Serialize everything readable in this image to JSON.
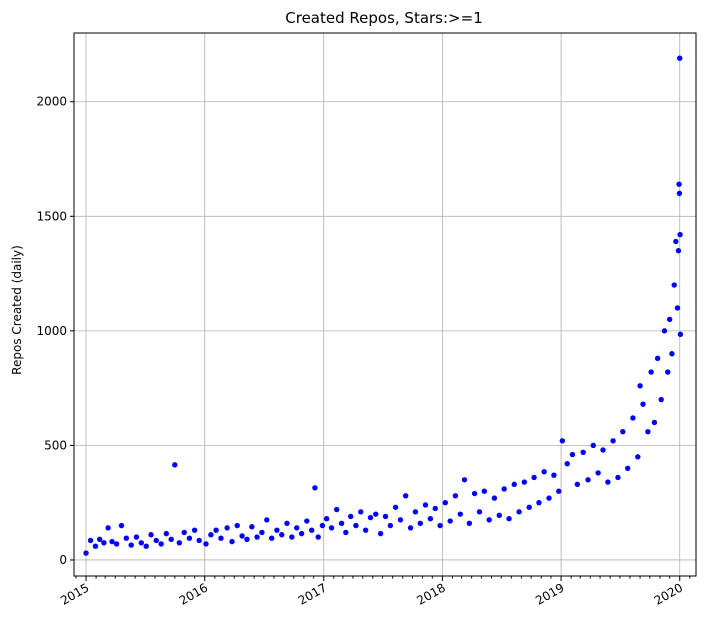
{
  "chart_data": {
    "type": "scatter",
    "title": "Created Repos, Stars:>=1",
    "xlabel": "",
    "ylabel": "Repos Created (daily)",
    "xlim": [
      "2014-11-25",
      "2020-02-20"
    ],
    "ylim": [
      -70,
      2300
    ],
    "x_ticks": [
      "2015",
      "2016",
      "2017",
      "2018",
      "2019",
      "2020"
    ],
    "x_tick_dates": [
      "2015-01-01",
      "2016-01-01",
      "2017-01-01",
      "2018-01-01",
      "2019-01-01",
      "2020-01-01"
    ],
    "y_ticks": [
      0,
      500,
      1000,
      1500,
      2000
    ],
    "grid": true,
    "marker_color": "#0000ff",
    "series": [
      {
        "points": [
          {
            "x": "2015-01-01",
            "y": 30
          },
          {
            "x": "2015-01-15",
            "y": 85
          },
          {
            "x": "2015-01-30",
            "y": 60
          },
          {
            "x": "2015-02-12",
            "y": 90
          },
          {
            "x": "2015-02-25",
            "y": 75
          },
          {
            "x": "2015-03-10",
            "y": 140
          },
          {
            "x": "2015-03-22",
            "y": 80
          },
          {
            "x": "2015-04-05",
            "y": 70
          },
          {
            "x": "2015-04-20",
            "y": 150
          },
          {
            "x": "2015-05-05",
            "y": 95
          },
          {
            "x": "2015-05-20",
            "y": 65
          },
          {
            "x": "2015-06-05",
            "y": 100
          },
          {
            "x": "2015-06-20",
            "y": 75
          },
          {
            "x": "2015-07-05",
            "y": 60
          },
          {
            "x": "2015-07-20",
            "y": 110
          },
          {
            "x": "2015-08-05",
            "y": 85
          },
          {
            "x": "2015-08-20",
            "y": 70
          },
          {
            "x": "2015-09-05",
            "y": 115
          },
          {
            "x": "2015-09-20",
            "y": 90
          },
          {
            "x": "2015-10-01",
            "y": 415
          },
          {
            "x": "2015-10-15",
            "y": 75
          },
          {
            "x": "2015-10-30",
            "y": 120
          },
          {
            "x": "2015-11-15",
            "y": 95
          },
          {
            "x": "2015-12-01",
            "y": 130
          },
          {
            "x": "2015-12-15",
            "y": 85
          },
          {
            "x": "2016-01-05",
            "y": 70
          },
          {
            "x": "2016-01-20",
            "y": 110
          },
          {
            "x": "2016-02-05",
            "y": 130
          },
          {
            "x": "2016-02-20",
            "y": 95
          },
          {
            "x": "2016-03-10",
            "y": 140
          },
          {
            "x": "2016-03-25",
            "y": 80
          },
          {
            "x": "2016-04-10",
            "y": 150
          },
          {
            "x": "2016-04-25",
            "y": 105
          },
          {
            "x": "2016-05-10",
            "y": 90
          },
          {
            "x": "2016-05-25",
            "y": 145
          },
          {
            "x": "2016-06-10",
            "y": 100
          },
          {
            "x": "2016-06-25",
            "y": 120
          },
          {
            "x": "2016-07-10",
            "y": 175
          },
          {
            "x": "2016-07-25",
            "y": 95
          },
          {
            "x": "2016-08-10",
            "y": 130
          },
          {
            "x": "2016-08-25",
            "y": 110
          },
          {
            "x": "2016-09-10",
            "y": 160
          },
          {
            "x": "2016-09-25",
            "y": 100
          },
          {
            "x": "2016-10-10",
            "y": 140
          },
          {
            "x": "2016-10-25",
            "y": 115
          },
          {
            "x": "2016-11-10",
            "y": 170
          },
          {
            "x": "2016-11-25",
            "y": 130
          },
          {
            "x": "2016-12-05",
            "y": 315
          },
          {
            "x": "2016-12-15",
            "y": 100
          },
          {
            "x": "2016-12-28",
            "y": 150
          },
          {
            "x": "2017-01-10",
            "y": 180
          },
          {
            "x": "2017-01-25",
            "y": 140
          },
          {
            "x": "2017-02-10",
            "y": 220
          },
          {
            "x": "2017-02-25",
            "y": 160
          },
          {
            "x": "2017-03-10",
            "y": 120
          },
          {
            "x": "2017-03-25",
            "y": 190
          },
          {
            "x": "2017-04-10",
            "y": 150
          },
          {
            "x": "2017-04-25",
            "y": 210
          },
          {
            "x": "2017-05-10",
            "y": 130
          },
          {
            "x": "2017-05-25",
            "y": 185
          },
          {
            "x": "2017-06-10",
            "y": 200
          },
          {
            "x": "2017-06-25",
            "y": 115
          },
          {
            "x": "2017-07-10",
            "y": 190
          },
          {
            "x": "2017-07-25",
            "y": 150
          },
          {
            "x": "2017-08-10",
            "y": 230
          },
          {
            "x": "2017-08-25",
            "y": 175
          },
          {
            "x": "2017-09-10",
            "y": 280
          },
          {
            "x": "2017-09-25",
            "y": 140
          },
          {
            "x": "2017-10-10",
            "y": 210
          },
          {
            "x": "2017-10-25",
            "y": 160
          },
          {
            "x": "2017-11-10",
            "y": 240
          },
          {
            "x": "2017-11-25",
            "y": 180
          },
          {
            "x": "2017-12-10",
            "y": 225
          },
          {
            "x": "2017-12-25",
            "y": 150
          },
          {
            "x": "2018-01-10",
            "y": 250
          },
          {
            "x": "2018-01-25",
            "y": 170
          },
          {
            "x": "2018-02-10",
            "y": 280
          },
          {
            "x": "2018-02-25",
            "y": 200
          },
          {
            "x": "2018-03-10",
            "y": 350
          },
          {
            "x": "2018-03-25",
            "y": 160
          },
          {
            "x": "2018-04-10",
            "y": 290
          },
          {
            "x": "2018-04-25",
            "y": 210
          },
          {
            "x": "2018-05-10",
            "y": 300
          },
          {
            "x": "2018-05-25",
            "y": 175
          },
          {
            "x": "2018-06-10",
            "y": 270
          },
          {
            "x": "2018-06-25",
            "y": 195
          },
          {
            "x": "2018-07-10",
            "y": 310
          },
          {
            "x": "2018-07-25",
            "y": 180
          },
          {
            "x": "2018-08-10",
            "y": 330
          },
          {
            "x": "2018-08-25",
            "y": 210
          },
          {
            "x": "2018-09-10",
            "y": 340
          },
          {
            "x": "2018-09-25",
            "y": 230
          },
          {
            "x": "2018-10-10",
            "y": 360
          },
          {
            "x": "2018-10-25",
            "y": 250
          },
          {
            "x": "2018-11-10",
            "y": 385
          },
          {
            "x": "2018-11-25",
            "y": 270
          },
          {
            "x": "2018-12-10",
            "y": 370
          },
          {
            "x": "2018-12-25",
            "y": 300
          },
          {
            "x": "2019-01-05",
            "y": 520
          },
          {
            "x": "2019-01-20",
            "y": 420
          },
          {
            "x": "2019-02-05",
            "y": 460
          },
          {
            "x": "2019-02-20",
            "y": 330
          },
          {
            "x": "2019-03-10",
            "y": 470
          },
          {
            "x": "2019-03-25",
            "y": 350
          },
          {
            "x": "2019-04-10",
            "y": 500
          },
          {
            "x": "2019-04-25",
            "y": 380
          },
          {
            "x": "2019-05-10",
            "y": 480
          },
          {
            "x": "2019-05-25",
            "y": 340
          },
          {
            "x": "2019-06-10",
            "y": 520
          },
          {
            "x": "2019-06-25",
            "y": 360
          },
          {
            "x": "2019-07-10",
            "y": 560
          },
          {
            "x": "2019-07-25",
            "y": 400
          },
          {
            "x": "2019-08-10",
            "y": 620
          },
          {
            "x": "2019-08-25",
            "y": 450
          },
          {
            "x": "2019-09-01",
            "y": 760
          },
          {
            "x": "2019-09-10",
            "y": 680
          },
          {
            "x": "2019-09-25",
            "y": 560
          },
          {
            "x": "2019-10-05",
            "y": 820
          },
          {
            "x": "2019-10-15",
            "y": 600
          },
          {
            "x": "2019-10-25",
            "y": 880
          },
          {
            "x": "2019-11-05",
            "y": 700
          },
          {
            "x": "2019-11-15",
            "y": 1000
          },
          {
            "x": "2019-11-25",
            "y": 820
          },
          {
            "x": "2019-12-01",
            "y": 1050
          },
          {
            "x": "2019-12-08",
            "y": 900
          },
          {
            "x": "2019-12-15",
            "y": 1200
          },
          {
            "x": "2019-12-20",
            "y": 1390
          },
          {
            "x": "2019-12-25",
            "y": 1100
          },
          {
            "x": "2019-12-28",
            "y": 1350
          },
          {
            "x": "2019-12-30",
            "y": 1640
          },
          {
            "x": "2019-12-31",
            "y": 1600
          },
          {
            "x": "2020-01-01",
            "y": 2190
          },
          {
            "x": "2020-01-02",
            "y": 1420
          },
          {
            "x": "2020-01-03",
            "y": 985
          }
        ]
      }
    ]
  }
}
